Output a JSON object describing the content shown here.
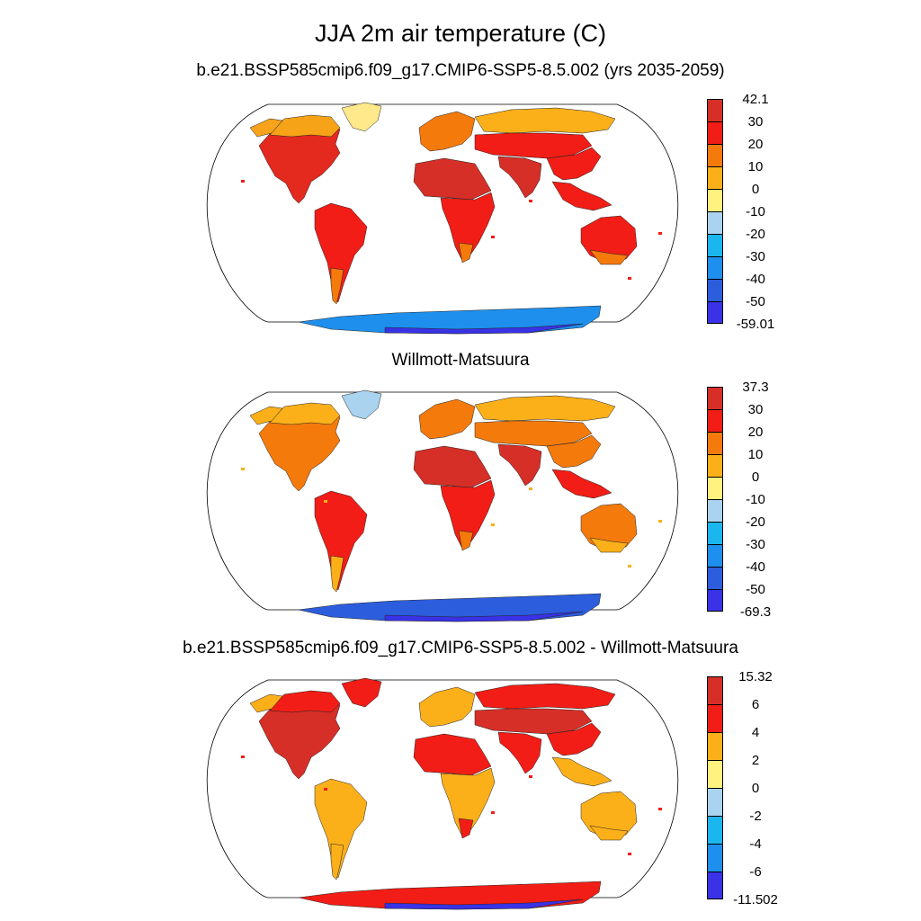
{
  "title": "JJA 2m air temperature (C)",
  "panels": [
    {
      "title": "b.e21.BSSP585cmip6.f09_g17.CMIP6-SSP5-8.5.002 (yrs 2035-2059)",
      "colorbar": {
        "labels": [
          "42.1",
          "30",
          "20",
          "10",
          "0",
          "-10",
          "-20",
          "-30",
          "-40",
          "-50",
          "-59.01"
        ],
        "colors": [
          "#d62f27",
          "#f21d16",
          "#f47a0c",
          "#fbb01a",
          "#fff27f",
          "#a9d3ee",
          "#1bb6ee",
          "#1e8fec",
          "#2c5ddc",
          "#3a32e6"
        ]
      },
      "regions": {
        "north_america": "#e4291f",
        "greenland": "#ffe98a",
        "canada": "#f6a317",
        "alaska": "#f8a31b",
        "south_america": "#f21d16",
        "patagonia": "#f47a0c",
        "africa_north": "#d62f27",
        "africa_south": "#f21d16",
        "africa_tip": "#f47a0c",
        "europe": "#f47a0c",
        "siberia": "#fbb01a",
        "central_asia": "#f21d16",
        "south_asia": "#d62f27",
        "east_asia": "#f21d16",
        "se_asia": "#f21d16",
        "australia": "#f21d16",
        "australia_south": "#f47a0c",
        "antarctica": "#1e8fec",
        "antarctica_edge": "#3a32e6"
      }
    },
    {
      "title": "Willmott-Matsuura",
      "colorbar": {
        "labels": [
          "37.3",
          "30",
          "20",
          "10",
          "0",
          "-10",
          "-20",
          "-30",
          "-40",
          "-50",
          "-69.3"
        ],
        "colors": [
          "#d62f27",
          "#f21d16",
          "#f47a0c",
          "#fbb01a",
          "#fff27f",
          "#a9d3ee",
          "#1bb6ee",
          "#1e8fec",
          "#2c5ddc",
          "#3a32e6"
        ]
      },
      "regions": {
        "north_america": "#f47a0c",
        "greenland": "#a9d3ee",
        "canada": "#fbb01a",
        "alaska": "#fbb01a",
        "south_america": "#f21d16",
        "patagonia": "#fbb01a",
        "africa_north": "#d62f27",
        "africa_south": "#f21d16",
        "africa_tip": "#f47a0c",
        "europe": "#f47a0c",
        "siberia": "#fbb01a",
        "central_asia": "#f47a0c",
        "south_asia": "#d62f27",
        "east_asia": "#f47a0c",
        "se_asia": "#f21d16",
        "australia": "#f47a0c",
        "australia_south": "#fbb01a",
        "antarctica": "#2c5ddc",
        "antarctica_edge": "#3a32e6"
      }
    },
    {
      "title": "b.e21.BSSP585cmip6.f09_g17.CMIP6-SSP5-8.5.002 - Willmott-Matsuura",
      "colorbar": {
        "labels": [
          "15.32",
          "6",
          "4",
          "2",
          "0",
          "-2",
          "-4",
          "-6",
          "-11.502"
        ],
        "colors": [
          "#d62f27",
          "#f21d16",
          "#fbb01a",
          "#fff27f",
          "#a9d3ee",
          "#1bb6ee",
          "#1e8fec",
          "#3a32e6"
        ]
      },
      "regions": {
        "north_america": "#d62f27",
        "greenland": "#f21d16",
        "canada": "#f21d16",
        "alaska": "#fbb01a",
        "south_america": "#fbb01a",
        "patagonia": "#fbb01a",
        "africa_north": "#f21d16",
        "africa_south": "#fbb01a",
        "africa_tip": "#f21d16",
        "europe": "#fbb01a",
        "siberia": "#f21d16",
        "central_asia": "#d62f27",
        "south_asia": "#f21d16",
        "east_asia": "#f21d16",
        "se_asia": "#fbb01a",
        "australia": "#fbb01a",
        "australia_south": "#fbb01a",
        "antarctica": "#f21d16",
        "antarctica_edge": "#3a32e6"
      }
    }
  ]
}
